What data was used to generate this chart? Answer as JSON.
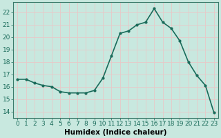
{
  "x": [
    0,
    1,
    2,
    3,
    4,
    5,
    6,
    7,
    8,
    9,
    10,
    11,
    12,
    13,
    14,
    15,
    16,
    17,
    18,
    19,
    20,
    21,
    22,
    23
  ],
  "y": [
    16.6,
    16.6,
    16.3,
    16.1,
    16.0,
    15.6,
    15.5,
    15.5,
    15.5,
    15.7,
    16.7,
    18.5,
    20.3,
    20.5,
    21.0,
    21.2,
    22.3,
    21.2,
    20.7,
    19.7,
    18.0,
    16.9,
    16.1,
    13.9
  ],
  "line_color": "#1a6b5a",
  "marker": "o",
  "marker_size": 2.0,
  "bg_color": "#c8e8df",
  "grid_color": "#e8c8c8",
  "xlabel": "Humidex (Indice chaleur)",
  "ylabel_ticks": [
    14,
    15,
    16,
    17,
    18,
    19,
    20,
    21,
    22
  ],
  "xlim": [
    -0.5,
    23.5
  ],
  "ylim": [
    13.5,
    22.8
  ],
  "xtick_labels": [
    "0",
    "1",
    "2",
    "3",
    "4",
    "5",
    "6",
    "7",
    "8",
    "9",
    "10",
    "11",
    "12",
    "13",
    "14",
    "15",
    "16",
    "17",
    "18",
    "19",
    "20",
    "21",
    "22",
    "23"
  ],
  "xlabel_fontsize": 7.5,
  "tick_fontsize": 6.5,
  "line_width": 1.2,
  "spine_color": "#3a7a6a"
}
